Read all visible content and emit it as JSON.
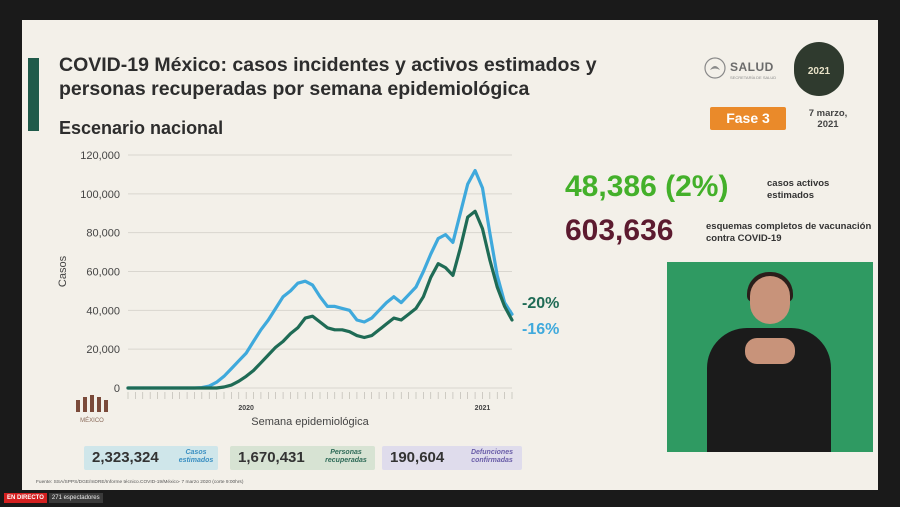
{
  "header": {
    "title": "COVID-19 México: casos incidentes y activos estimados y personas recuperadas por semana epidemiológica",
    "subtitle": "Escenario nacional"
  },
  "branding": {
    "salud": "SALUD",
    "salud_sub": "SECRETARÍA DE SALUD",
    "seal_year": "2021",
    "mexico_logo": "MÉXICO"
  },
  "phase": {
    "label": "Fase 3",
    "date": "7 marzo, 2021"
  },
  "stats": {
    "active_value": "48,386 (2%)",
    "active_label": "casos activos estimados",
    "vaccination_value": "603,636",
    "vaccination_label": "esquemas completos de vacunación contra COVID-19"
  },
  "summary_boxes": [
    {
      "value": "2,323,324",
      "label": "Casos estimados"
    },
    {
      "value": "1,670,431",
      "label": "Personas recuperadas"
    },
    {
      "value": "190,604",
      "label": "Defunciones confirmadas"
    }
  ],
  "source": "Fuente: SSA/SPPS/DGE/InDRE/Informe técnico.COVID-19/México- 7 marzo 2020 (corte 9:00hrs)",
  "live": {
    "badge": "EN DIRECTO",
    "viewers": "271 espectadores"
  },
  "colors": {
    "estimated_cases": "#3fa9dc",
    "recovered": "#1f6b55",
    "phase_badge": "#ea8a2a",
    "active_green": "#43b02a",
    "vaccine_maroon": "#5c1a2f"
  },
  "chart_data": {
    "type": "line",
    "ylabel": "Casos",
    "xlabel": "Semana epidemiológica",
    "ylim": [
      0,
      120000
    ],
    "yticks": [
      "0",
      "20,000",
      "40,000",
      "60,000",
      "80,000",
      "100,000",
      "120,000"
    ],
    "year_labels": [
      "2020",
      "2021"
    ],
    "series": [
      {
        "name": "casos estimados",
        "annotation": "-16%",
        "values": [
          0,
          0,
          0,
          0,
          0,
          0,
          0,
          0,
          0,
          0,
          200,
          1000,
          3000,
          6000,
          10000,
          14000,
          18000,
          24000,
          30000,
          35000,
          41000,
          47000,
          50000,
          54000,
          55000,
          53000,
          47000,
          42000,
          42000,
          41000,
          40000,
          35000,
          34000,
          36000,
          40000,
          44000,
          47000,
          44000,
          48000,
          52000,
          60000,
          69000,
          77000,
          79000,
          75000,
          90000,
          105000,
          112000,
          103000,
          80000,
          58000,
          44000,
          38000
        ]
      },
      {
        "name": "personas recuperadas",
        "annotation": "-20%",
        "values": [
          0,
          0,
          0,
          0,
          0,
          0,
          0,
          0,
          0,
          0,
          0,
          0,
          0,
          500,
          1500,
          3500,
          6000,
          9000,
          13000,
          17000,
          21000,
          24000,
          28000,
          31000,
          36000,
          37000,
          34000,
          31000,
          30000,
          30000,
          29000,
          27000,
          26000,
          27000,
          30000,
          33000,
          36000,
          35000,
          38000,
          41000,
          47000,
          57000,
          64000,
          62000,
          58000,
          72000,
          88000,
          91000,
          82000,
          66000,
          52000,
          42000,
          35000
        ]
      }
    ]
  }
}
